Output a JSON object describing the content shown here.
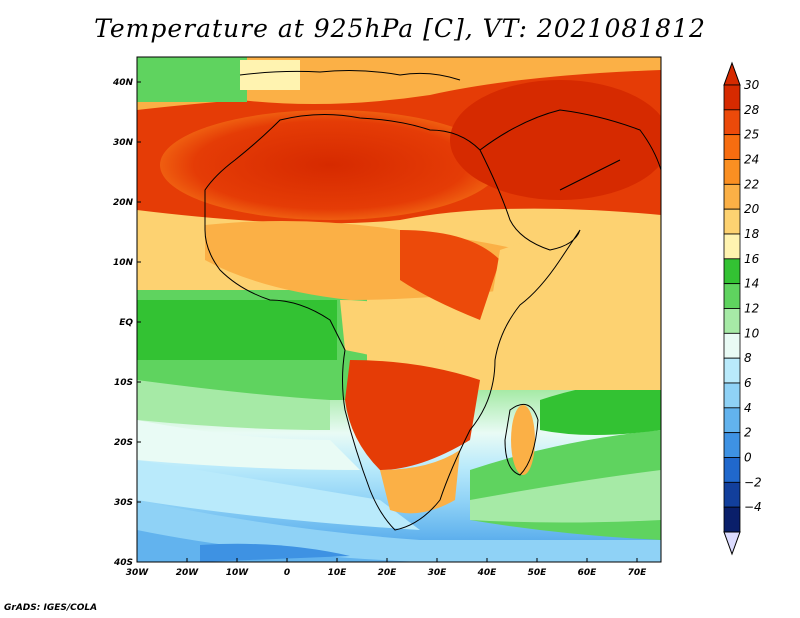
{
  "title": "Temperature at 925hPa [C], VT: 2021081812",
  "credit": "GrADS: IGES/COLA",
  "map": {
    "lat_labels": [
      "40N",
      "30N",
      "20N",
      "10N",
      "EQ",
      "10S",
      "20S",
      "30S",
      "40S"
    ],
    "lon_labels": [
      "30W",
      "20W",
      "10W",
      "0",
      "10E",
      "20E",
      "30E",
      "40E",
      "50E",
      "60E",
      "70E"
    ],
    "lon_range": [
      -30,
      75
    ],
    "lat_range": [
      -40,
      45
    ]
  },
  "colorbar": {
    "labels": [
      "30",
      "28",
      "25",
      "24",
      "22",
      "20",
      "18",
      "16",
      "14",
      "12",
      "10",
      "8",
      "6",
      "4",
      "2",
      "0",
      "-2",
      "-4"
    ],
    "colors": [
      "#d62a00",
      "#ec4a0a",
      "#f76d10",
      "#fa8f22",
      "#fbb046",
      "#fdd271",
      "#fff3b0",
      "#33c233",
      "#5fd35f",
      "#a6eaa6",
      "#e9fbf5",
      "#b9eafb",
      "#8fd2f6",
      "#62b3ee",
      "#3e92e3",
      "#2068cc",
      "#123f9c",
      "#0a1f6a"
    ],
    "top_color": "#d62a00",
    "bottom_color": "#dcdcff"
  }
}
